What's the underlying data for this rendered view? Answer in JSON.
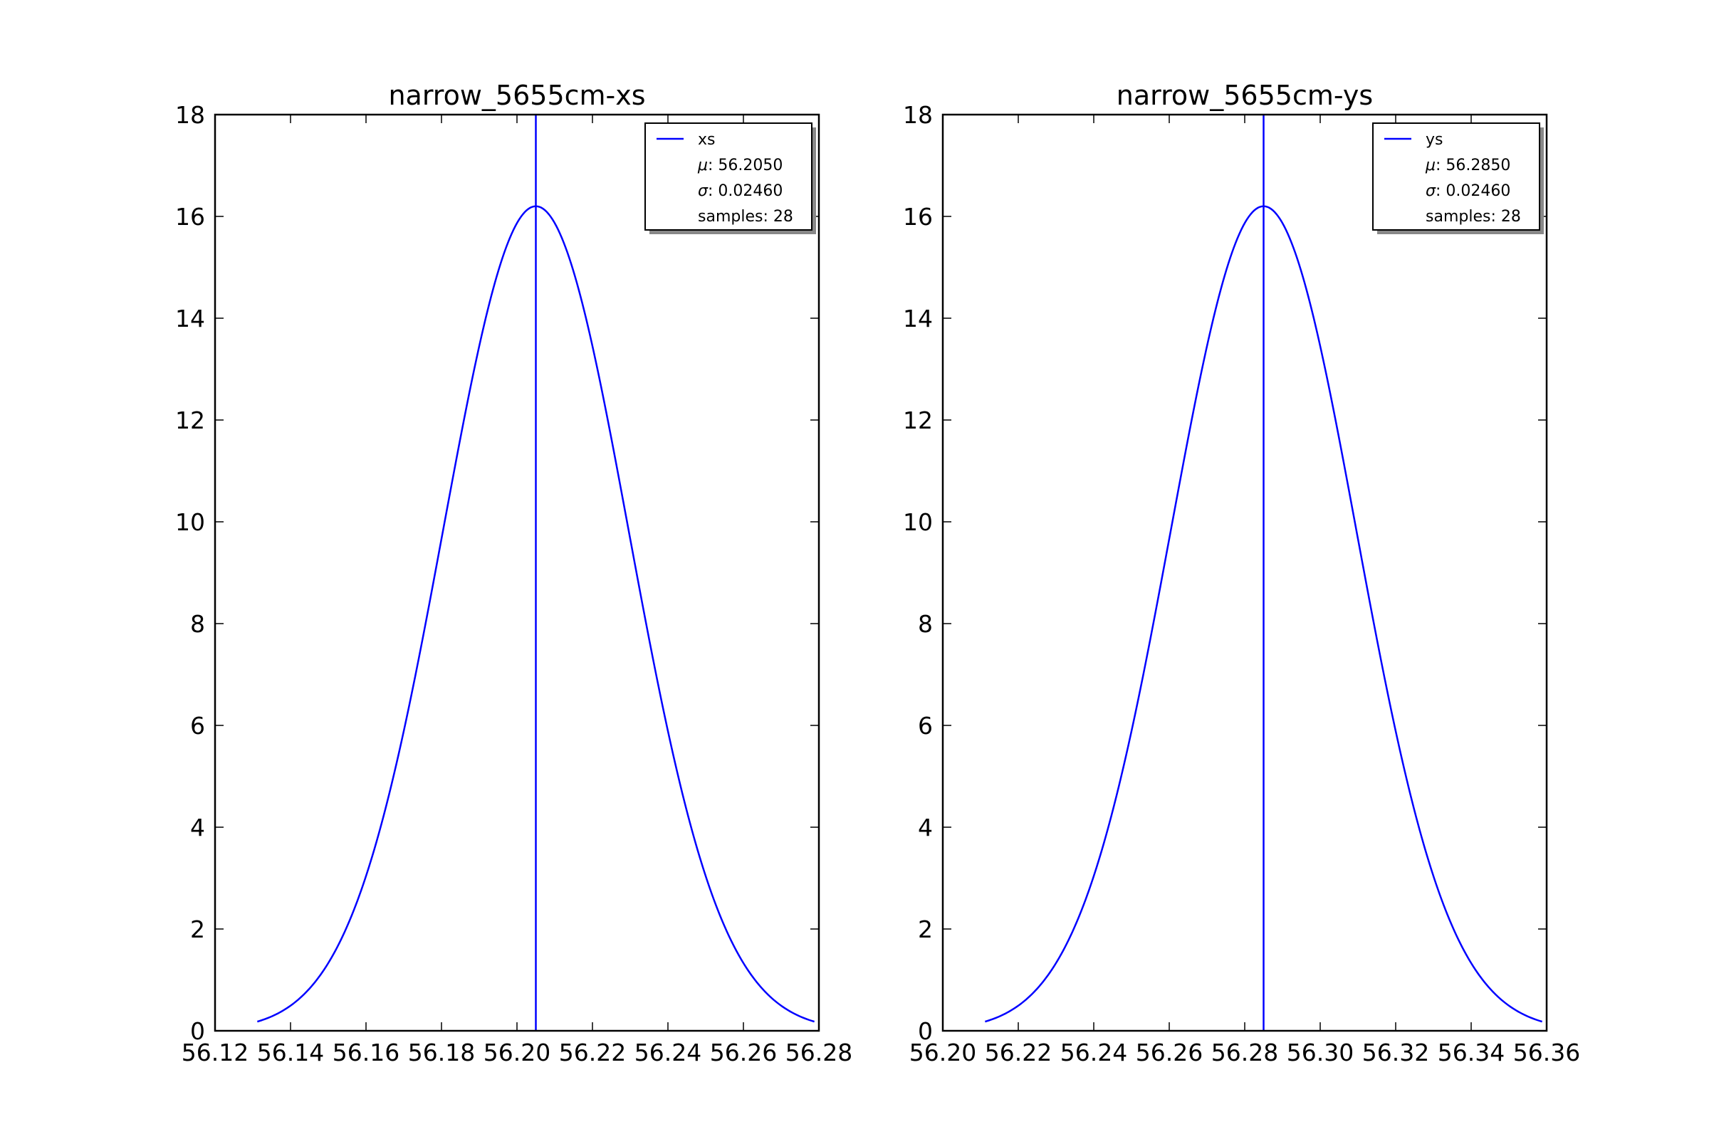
{
  "chart_data": [
    {
      "type": "line",
      "title": "narrow_5655cm-xs",
      "xlabel": "",
      "ylabel": "",
      "xlim": [
        56.12,
        56.28
      ],
      "ylim": [
        0,
        18
      ],
      "xticks": [
        "56.12",
        "56.14",
        "56.16",
        "56.18",
        "56.20",
        "56.22",
        "56.24",
        "56.26",
        "56.28"
      ],
      "yticks": [
        "0",
        "2",
        "4",
        "6",
        "8",
        "10",
        "12",
        "14",
        "16",
        "18"
      ],
      "grid": false,
      "legend_position": "top-right",
      "series": [
        {
          "name": "xs",
          "kind": "normal-pdf",
          "color": "#0000ff",
          "mu": 56.205,
          "sigma": 0.0246,
          "x_range": [
            56.1312,
            56.2788
          ],
          "peak_y": 16.2
        }
      ],
      "vline": {
        "x": 56.205,
        "color": "#0000ff"
      },
      "legend": {
        "series_label": "xs",
        "mu_label": "56.2050",
        "sigma_label": "0.02460",
        "samples_label": "samples: 28"
      }
    },
    {
      "type": "line",
      "title": "narrow_5655cm-ys",
      "xlabel": "",
      "ylabel": "",
      "xlim": [
        56.2,
        56.36
      ],
      "ylim": [
        0,
        18
      ],
      "xticks": [
        "56.20",
        "56.22",
        "56.24",
        "56.26",
        "56.28",
        "56.30",
        "56.32",
        "56.34",
        "56.36"
      ],
      "yticks": [
        "0",
        "2",
        "4",
        "6",
        "8",
        "10",
        "12",
        "14",
        "16",
        "18"
      ],
      "grid": false,
      "legend_position": "top-right",
      "series": [
        {
          "name": "ys",
          "kind": "normal-pdf",
          "color": "#0000ff",
          "mu": 56.285,
          "sigma": 0.0246,
          "x_range": [
            56.2112,
            56.3588
          ],
          "peak_y": 16.2
        }
      ],
      "vline": {
        "x": 56.285,
        "color": "#0000ff"
      },
      "legend": {
        "series_label": "ys",
        "mu_label": "56.2850",
        "sigma_label": "0.02460",
        "samples_label": "samples: 28"
      }
    }
  ]
}
